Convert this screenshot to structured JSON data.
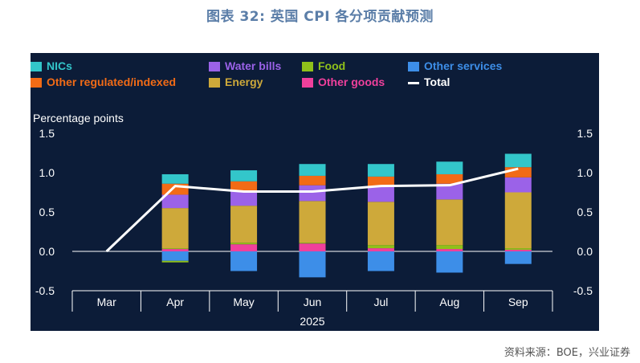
{
  "title": "图表 32: 英国 CPI 各分项贡献预测",
  "source": "资料来源：BOE，兴业证券",
  "chart_data": {
    "type": "bar",
    "stacked": true,
    "categories": [
      "Mar",
      "Apr",
      "May",
      "Jun",
      "Jul",
      "Aug",
      "Sep"
    ],
    "xlabel": "2025",
    "ylabel": "Percentage points",
    "ylim": [
      -0.5,
      1.5
    ],
    "yticks": [
      "1.5",
      "1.0",
      "0.5",
      "0.0",
      "-0.5"
    ],
    "grid": false,
    "legend_position": "top",
    "positive_series": [
      {
        "name": "Other goods",
        "color": "#f0409c",
        "values": [
          0,
          0.03,
          0.09,
          0.1,
          0.04,
          0.03,
          0.02
        ]
      },
      {
        "name": "Food",
        "color": "#8fc01a",
        "values": [
          0,
          0.01,
          0.02,
          0.01,
          0.04,
          0.05,
          0.02
        ]
      },
      {
        "name": "Energy",
        "color": "#cea93a",
        "values": [
          0,
          0.51,
          0.47,
          0.53,
          0.55,
          0.58,
          0.71
        ]
      },
      {
        "name": "Water bills",
        "color": "#9b62e8",
        "values": [
          0,
          0.17,
          0.19,
          0.2,
          0.2,
          0.2,
          0.19
        ]
      },
      {
        "name": "Other regulated/indexed",
        "color": "#f26b16",
        "values": [
          0,
          0.14,
          0.12,
          0.12,
          0.12,
          0.12,
          0.13
        ]
      },
      {
        "name": "NICs",
        "color": "#33c6ca",
        "values": [
          0,
          0.12,
          0.14,
          0.15,
          0.16,
          0.16,
          0.17
        ]
      }
    ],
    "negative_series": [
      {
        "name": "Other services",
        "color": "#3d8ee8",
        "values": [
          0,
          -0.12,
          -0.25,
          -0.33,
          -0.25,
          -0.27,
          -0.16
        ]
      },
      {
        "name": "Food",
        "color": "#8fc01a",
        "values": [
          0,
          -0.02,
          0,
          0,
          0,
          0,
          0
        ]
      }
    ],
    "total": {
      "name": "Total",
      "color": "#ffffff",
      "values": [
        0.0,
        0.83,
        0.76,
        0.76,
        0.83,
        0.84,
        1.05
      ]
    },
    "legend": [
      {
        "name": "NICs",
        "color": "#33c6ca",
        "kind": "box"
      },
      {
        "name": "Water bills",
        "color": "#9b62e8",
        "kind": "box"
      },
      {
        "name": "Food",
        "color": "#8fc01a",
        "kind": "box"
      },
      {
        "name": "Other services",
        "color": "#3d8ee8",
        "kind": "box"
      },
      {
        "name": "Other regulated/indexed",
        "color": "#f26b16",
        "kind": "box"
      },
      {
        "name": "Energy",
        "color": "#cea93a",
        "kind": "box"
      },
      {
        "name": "Other goods",
        "color": "#f0409c",
        "kind": "box"
      },
      {
        "name": "Total",
        "color": "#ffffff",
        "kind": "line"
      }
    ]
  }
}
